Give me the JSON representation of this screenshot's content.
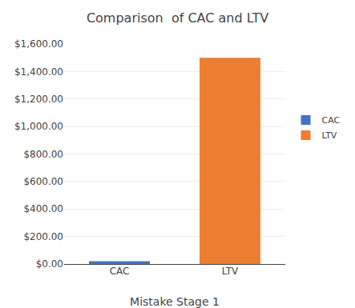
{
  "chart_data": {
    "type": "bar",
    "title": "Comparison  of CAC and LTV",
    "xlabel": "Mistake Stage 1",
    "categories": [
      "CAC",
      "LTV"
    ],
    "values": [
      20,
      1500
    ],
    "colors": [
      "#4472C4",
      "#ED7D31"
    ],
    "ylim": [
      0,
      1600
    ],
    "yticks": [
      {
        "value": 0,
        "label": "$0.00"
      },
      {
        "value": 200,
        "label": "$200.00"
      },
      {
        "value": 400,
        "label": "$400.00"
      },
      {
        "value": 600,
        "label": "$600.00"
      },
      {
        "value": 800,
        "label": "$800.00"
      },
      {
        "value": 1000,
        "label": "$1,000.00"
      },
      {
        "value": 1200,
        "label": "$1,200.00"
      },
      {
        "value": 1400,
        "label": "$1,400.00"
      },
      {
        "value": 1600,
        "label": "$1,600.00"
      }
    ],
    "grid": true,
    "legend": "right"
  }
}
